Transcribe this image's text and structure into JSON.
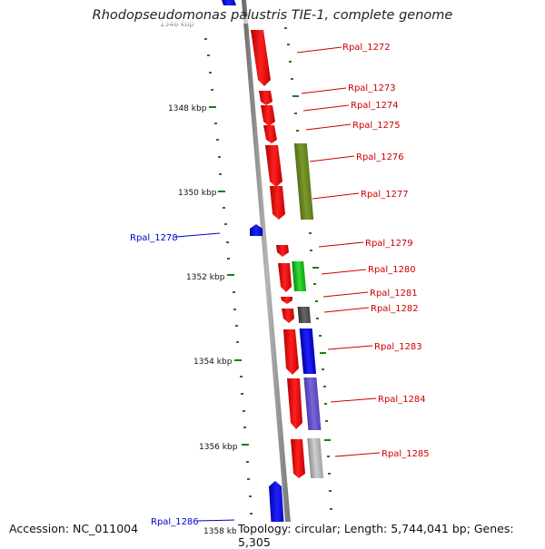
{
  "title": "Rhodopseudomonas palustris TIE-1, complete genome",
  "accession": "Accession: NC_011004",
  "topology": "Topology: circular; Length: 5,744,041 bp; Genes: 5,305",
  "top_partial_label": "1346 kbp",
  "ticks": [
    "1348 kbp",
    "1350 kbp",
    "1352 kbp",
    "1354 kbp",
    "1356 kbp",
    "1358 kbp"
  ],
  "colors": {
    "backbone": "#8a8a8a",
    "tick": "#1f7a1f",
    "forward_gene": "#e00000",
    "reverse_gene": "#0000e0",
    "forward_label": "#cc0000",
    "reverse_label": "#0000cc",
    "olive": "#6b8a1f",
    "green": "#22cc22",
    "dark_gray": "#555555",
    "blue": "#0000e0",
    "slate_blue": "#6655cc",
    "light_gray": "#b0b0b0"
  },
  "genes": [
    {
      "name": "Rpal_1272",
      "strand": "forward"
    },
    {
      "name": "Rpal_1273",
      "strand": "forward"
    },
    {
      "name": "Rpal_1274",
      "strand": "forward"
    },
    {
      "name": "Rpal_1275",
      "strand": "forward"
    },
    {
      "name": "Rpal_1276",
      "strand": "forward"
    },
    {
      "name": "Rpal_1277",
      "strand": "forward"
    },
    {
      "name": "Rpal_1278",
      "strand": "reverse"
    },
    {
      "name": "Rpal_1279",
      "strand": "forward"
    },
    {
      "name": "Rpal_1280",
      "strand": "forward"
    },
    {
      "name": "Rpal_1281",
      "strand": "forward"
    },
    {
      "name": "Rpal_1282",
      "strand": "forward"
    },
    {
      "name": "Rpal_1283",
      "strand": "forward"
    },
    {
      "name": "Rpal_1284",
      "strand": "forward"
    },
    {
      "name": "Rpal_1285",
      "strand": "forward"
    },
    {
      "name": "Rpal_1286",
      "strand": "reverse"
    }
  ]
}
